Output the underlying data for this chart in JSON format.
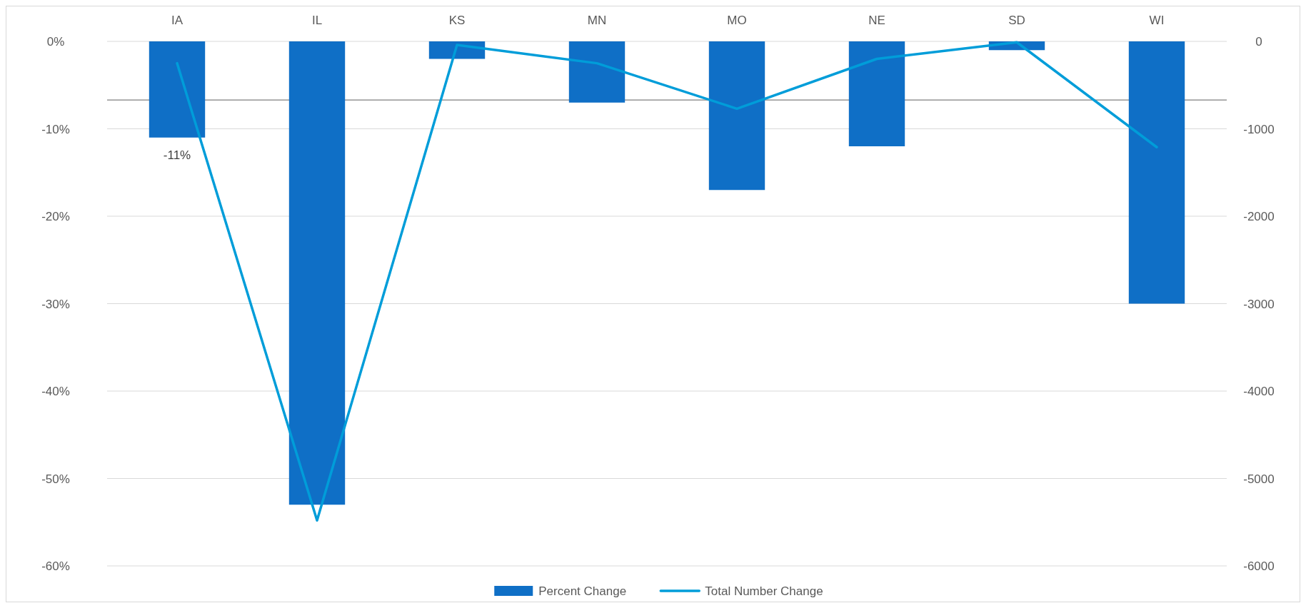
{
  "chart_data": {
    "type": "bar",
    "categories": [
      "IA",
      "IL",
      "KS",
      "MN",
      "MO",
      "NE",
      "SD",
      "WI"
    ],
    "series": [
      {
        "name": "Percent Change",
        "color": "#0f6fc6",
        "values": [
          -11,
          -53,
          -2,
          -7,
          -17,
          -12,
          -1,
          -30
        ],
        "value_labels": [
          "-11%",
          null,
          null,
          null,
          null,
          null,
          null,
          null
        ]
      },
      {
        "name": "Total Number Change",
        "type": "line",
        "axis": "y2",
        "color": "#009dd9",
        "values": [
          -250,
          -5480,
          -40,
          -250,
          -770,
          -200,
          -10,
          -1210
        ]
      }
    ],
    "ylim": [
      -60,
      0
    ],
    "yticks": [
      {
        "value": 0,
        "label": "0%"
      },
      {
        "value": -10,
        "label": "-10%"
      },
      {
        "value": -20,
        "label": "-20%"
      },
      {
        "value": -30,
        "label": "-30%"
      },
      {
        "value": -40,
        "label": "-40%"
      },
      {
        "value": -50,
        "label": "-50%"
      },
      {
        "value": -60,
        "label": "-60%"
      }
    ],
    "y2lim": [
      -6000,
      0
    ],
    "y2ticks": [
      0,
      -1000,
      -2000,
      -3000,
      -4000,
      -5000,
      -6000
    ],
    "ref_lines": [
      {
        "axis": "y",
        "value": -6.7,
        "color": "#7f7f7f"
      }
    ],
    "grid": "y",
    "legend": "bottom",
    "line_style": "solid",
    "marker": "none"
  }
}
